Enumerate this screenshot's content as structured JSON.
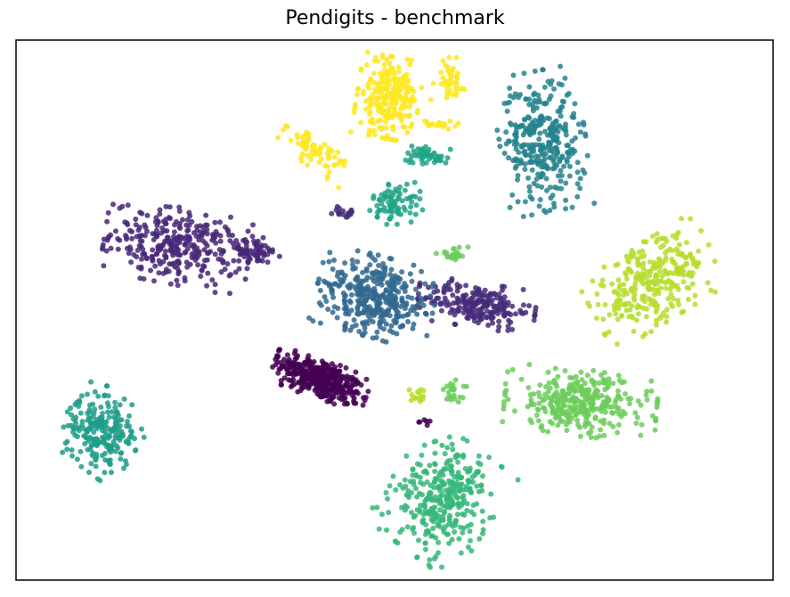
{
  "chart_data": {
    "type": "scatter",
    "title": "Pendigits - benchmark",
    "xlabel": "",
    "ylabel": "",
    "axes_visible": false,
    "legend": "none",
    "colormap": "viridis",
    "clusters": [
      {
        "label_index": 0,
        "color": "#440154",
        "center": [
          -2.35,
          -2.05
        ],
        "spread": [
          0.7,
          0.28
        ],
        "angle_deg": -22,
        "count": 380,
        "tail": {
          "center": [
            0.9,
            -3.3
          ],
          "count": 6
        }
      },
      {
        "label_index": 1,
        "color": "#482878",
        "center": [
          -6.9,
          1.9
        ],
        "spread": [
          1.05,
          0.52
        ],
        "angle_deg": -10,
        "count": 310,
        "sub": [
          {
            "center": [
              -4.5,
              1.75
            ],
            "spread": [
              0.45,
              0.18
            ],
            "count": 70
          }
        ]
      },
      {
        "label_index": 2,
        "color": "#472c7a",
        "center": [
          2.6,
          0.15
        ],
        "spread": [
          0.85,
          0.3
        ],
        "angle_deg": -8,
        "count": 230,
        "sub": [
          {
            "center": [
              -1.6,
              2.9
            ],
            "spread": [
              0.18,
              0.08
            ],
            "count": 18
          }
        ]
      },
      {
        "label_index": 3,
        "color": "#31688e",
        "center": [
          -0.6,
          0.4
        ],
        "spread": [
          0.85,
          0.55
        ],
        "angle_deg": -15,
        "count": 360
      },
      {
        "label_index": 4,
        "color": "#26828e",
        "center": [
          4.7,
          5.0
        ],
        "spread": [
          0.62,
          0.95
        ],
        "angle_deg": 10,
        "count": 330
      },
      {
        "label_index": 5,
        "color": "#1f9e89",
        "center": [
          -9.3,
          -3.6
        ],
        "spread": [
          0.55,
          0.55
        ],
        "angle_deg": -35,
        "count": 230
      },
      {
        "label_index": 6,
        "color": "#20a486",
        "center": [
          0.05,
          3.2
        ],
        "spread": [
          0.38,
          0.3
        ],
        "angle_deg": 0,
        "count": 80,
        "sub": [
          {
            "center": [
              1.0,
              4.6
            ],
            "spread": [
              0.35,
              0.14
            ],
            "count": 50
          }
        ]
      },
      {
        "label_index": 7,
        "color": "#35b779",
        "center": [
          1.5,
          -5.6
        ],
        "spread": [
          0.75,
          0.85
        ],
        "angle_deg": -35,
        "count": 330
      },
      {
        "label_index": 8,
        "color": "#6ccd5a",
        "center": [
          5.9,
          -2.75
        ],
        "spread": [
          1.1,
          0.45
        ],
        "angle_deg": -5,
        "count": 330,
        "sub": [
          {
            "center": [
              1.85,
              1.65
            ],
            "spread": [
              0.25,
              0.1
            ],
            "count": 25
          },
          {
            "center": [
              1.9,
              -2.4
            ],
            "spread": [
              0.22,
              0.15
            ],
            "count": 22
          }
        ]
      },
      {
        "label_index": 9,
        "color": "#b5de2b",
        "center": [
          8.2,
          0.8
        ],
        "spread": [
          0.95,
          0.55
        ],
        "angle_deg": 30,
        "count": 300,
        "sub": [
          {
            "center": [
              0.8,
              -2.5
            ],
            "spread": [
              0.15,
              0.12
            ],
            "count": 15
          }
        ]
      },
      {
        "label_index": 10,
        "color": "#fde725",
        "center": [
          -0.2,
          6.3
        ],
        "spread": [
          0.45,
          0.55
        ],
        "angle_deg": -10,
        "count": 250,
        "sub": [
          {
            "center": [
              -2.5,
              4.7
            ],
            "spread": [
              0.55,
              0.22
            ],
            "angle_deg": -35,
            "count": 70
          },
          {
            "center": [
              1.7,
              6.9
            ],
            "spread": [
              0.25,
              0.3
            ],
            "count": 45
          },
          {
            "center": [
              1.5,
              5.5
            ],
            "spread": [
              0.3,
              0.06
            ],
            "count": 18
          }
        ]
      }
    ],
    "xlim": [
      -12,
      12
    ],
    "ylim": [
      -8,
      8
    ]
  }
}
